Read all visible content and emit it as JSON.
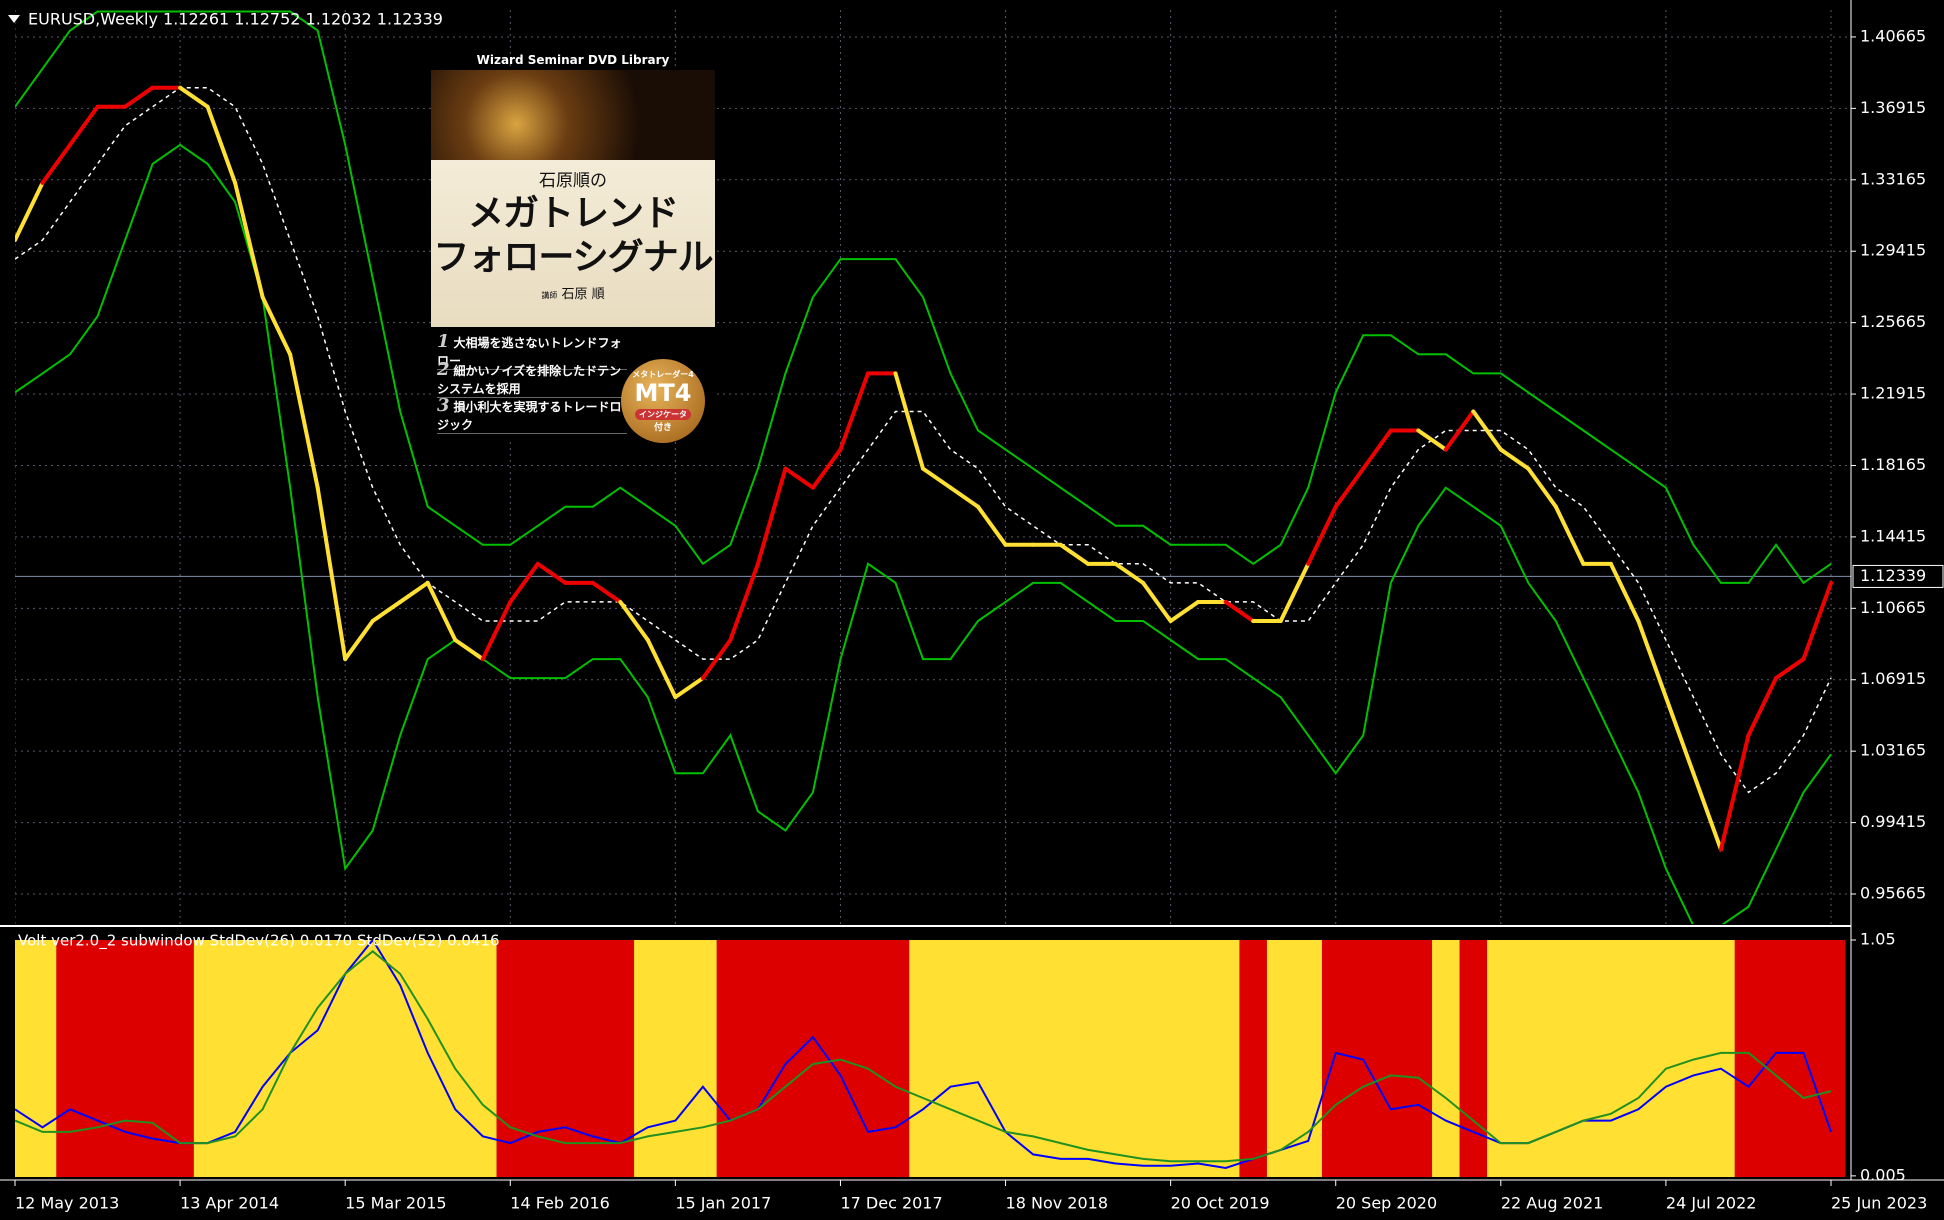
{
  "chart_data": [
    {
      "type": "line",
      "title": "EURUSD,Weekly  1.12261 1.12752 1.12032 1.12339",
      "ylim": [
        0.9409,
        1.4208
      ],
      "yticks": [
        1.40665,
        1.36915,
        1.33165,
        1.29415,
        1.25665,
        1.21915,
        1.18165,
        1.14415,
        1.10665,
        1.06915,
        1.03165,
        0.99415,
        0.95665
      ],
      "current_price": 1.12339,
      "grid": true,
      "series": [
        {
          "color": "#00c000",
          "values": [
            1.37,
            1.39,
            1.41,
            1.42,
            1.42,
            1.42,
            1.42,
            1.42,
            1.42,
            1.42,
            1.42,
            1.41,
            1.35,
            1.28,
            1.21,
            1.16,
            1.15,
            1.14,
            1.14,
            1.15,
            1.16,
            1.16,
            1.17,
            1.16,
            1.15,
            1.13,
            1.14,
            1.18,
            1.23,
            1.27,
            1.29,
            1.29,
            1.29,
            1.27,
            1.23,
            1.2,
            1.19,
            1.18,
            1.17,
            1.16,
            1.15,
            1.15,
            1.14,
            1.14,
            1.14,
            1.13,
            1.14,
            1.17,
            1.22,
            1.25,
            1.25,
            1.24,
            1.24,
            1.23,
            1.23,
            1.22,
            1.21,
            1.2,
            1.19,
            1.18,
            1.17,
            1.14,
            1.12,
            1.12,
            1.14,
            1.12,
            1.13
          ]
        },
        {
          "color": "#ffffff",
          "dashed": true,
          "values": [
            1.29,
            1.3,
            1.32,
            1.34,
            1.36,
            1.37,
            1.38,
            1.38,
            1.37,
            1.34,
            1.3,
            1.26,
            1.21,
            1.17,
            1.14,
            1.12,
            1.11,
            1.1,
            1.1,
            1.1,
            1.11,
            1.11,
            1.11,
            1.1,
            1.09,
            1.08,
            1.08,
            1.09,
            1.12,
            1.15,
            1.17,
            1.19,
            1.21,
            1.21,
            1.19,
            1.18,
            1.16,
            1.15,
            1.14,
            1.14,
            1.13,
            1.13,
            1.12,
            1.12,
            1.11,
            1.11,
            1.1,
            1.1,
            1.12,
            1.14,
            1.17,
            1.19,
            1.2,
            1.2,
            1.2,
            1.19,
            1.17,
            1.16,
            1.14,
            1.12,
            1.09,
            1.06,
            1.03,
            1.01,
            1.02,
            1.04,
            1.07
          ]
        },
        {
          "color": "#00c000",
          "values": [
            1.22,
            1.23,
            1.24,
            1.26,
            1.3,
            1.34,
            1.35,
            1.34,
            1.32,
            1.27,
            1.17,
            1.06,
            0.97,
            0.99,
            1.04,
            1.08,
            1.09,
            1.08,
            1.07,
            1.07,
            1.07,
            1.08,
            1.08,
            1.06,
            1.02,
            1.02,
            1.04,
            1.0,
            0.99,
            1.01,
            1.08,
            1.13,
            1.12,
            1.08,
            1.08,
            1.1,
            1.11,
            1.12,
            1.12,
            1.11,
            1.1,
            1.1,
            1.09,
            1.08,
            1.08,
            1.07,
            1.06,
            1.04,
            1.02,
            1.04,
            1.12,
            1.15,
            1.17,
            1.16,
            1.15,
            1.12,
            1.1,
            1.07,
            1.04,
            1.01,
            0.97,
            0.94,
            0.94,
            0.95,
            0.98,
            1.01,
            1.03
          ]
        },
        {
          "colors": [
            "#ffe033",
            "#ffe033",
            "#ee0000",
            "#ee0000",
            "#ee0000",
            "#ee0000",
            "#ee0000",
            "#ffe033",
            "#ffe033",
            "#ffe033",
            "#ffe033",
            "#ffe033",
            "#ffe033",
            "#ffe033",
            "#ffe033",
            "#ffe033",
            "#ffe033",
            "#ffe033",
            "#ee0000",
            "#ee0000",
            "#ee0000",
            "#ee0000",
            "#ee0000",
            "#ffe033",
            "#ffe033",
            "#ffe033",
            "#ee0000",
            "#ee0000",
            "#ee0000",
            "#ee0000",
            "#ee0000",
            "#ee0000",
            "#ee0000",
            "#ffe033",
            "#ffe033",
            "#ffe033",
            "#ffe033",
            "#ffe033",
            "#ffe033",
            "#ffe033",
            "#ffe033",
            "#ffe033",
            "#ffe033",
            "#ffe033",
            "#ffe033",
            "#ee0000",
            "#ffe033",
            "#ffe033",
            "#ee0000",
            "#ee0000",
            "#ee0000",
            "#ee0000",
            "#ffe033",
            "#ee0000",
            "#ffe033",
            "#ffe033",
            "#ffe033",
            "#ffe033",
            "#ffe033",
            "#ffe033",
            "#ffe033",
            "#ffe033",
            "#ffe033",
            "#ee0000",
            "#ee0000",
            "#ee0000",
            "#ee0000"
          ],
          "values": [
            1.3,
            1.33,
            1.35,
            1.37,
            1.37,
            1.38,
            1.38,
            1.37,
            1.33,
            1.27,
            1.24,
            1.17,
            1.08,
            1.1,
            1.11,
            1.12,
            1.09,
            1.08,
            1.11,
            1.13,
            1.12,
            1.12,
            1.11,
            1.09,
            1.06,
            1.07,
            1.09,
            1.13,
            1.18,
            1.17,
            1.19,
            1.23,
            1.23,
            1.18,
            1.17,
            1.16,
            1.14,
            1.14,
            1.14,
            1.13,
            1.13,
            1.12,
            1.1,
            1.11,
            1.11,
            1.1,
            1.1,
            1.13,
            1.16,
            1.18,
            1.2,
            1.2,
            1.19,
            1.21,
            1.19,
            1.18,
            1.16,
            1.13,
            1.13,
            1.1,
            1.06,
            1.02,
            0.98,
            1.04,
            1.07,
            1.08,
            1.12
          ]
        }
      ]
    },
    {
      "type": "line",
      "title": "Volt ver2.0_2 subwindow  StdDev(26) 0.0170  StdDev(52) 0.0416",
      "categories": [
        "12 May 2013",
        null,
        null,
        null,
        null,
        null,
        "13 Apr 2014",
        null,
        null,
        null,
        null,
        null,
        "15 Mar 2015",
        null,
        null,
        null,
        null,
        null,
        "14 Feb 2016",
        null,
        null,
        null,
        null,
        null,
        "15 Jan 2017",
        null,
        null,
        null,
        null,
        null,
        "17 Dec 2017",
        null,
        null,
        null,
        null,
        null,
        "18 Nov 2018",
        null,
        null,
        null,
        null,
        null,
        "20 Oct 2019",
        null,
        null,
        null,
        null,
        null,
        "20 Sep 2020",
        null,
        null,
        null,
        null,
        null,
        "22 Aug 2021",
        null,
        null,
        null,
        null,
        null,
        "24 Jul 2022",
        null,
        null,
        null,
        null,
        null,
        "25 Jun 2023"
      ],
      "ylim": [
        0,
        1.05
      ],
      "yticks": [
        1.05,
        0.005
      ],
      "band_colors": [
        "#ffe033",
        "#ffe033",
        "#dd0000",
        "#dd0000",
        "#dd0000",
        "#dd0000",
        "#dd0000",
        "#ffe033",
        "#ffe033",
        "#ffe033",
        "#ffe033",
        "#ffe033",
        "#ffe033",
        "#ffe033",
        "#ffe033",
        "#ffe033",
        "#ffe033",
        "#ffe033",
        "#dd0000",
        "#dd0000",
        "#dd0000",
        "#dd0000",
        "#dd0000",
        "#ffe033",
        "#ffe033",
        "#ffe033",
        "#dd0000",
        "#dd0000",
        "#dd0000",
        "#dd0000",
        "#dd0000",
        "#dd0000",
        "#dd0000",
        "#ffe033",
        "#ffe033",
        "#ffe033",
        "#ffe033",
        "#ffe033",
        "#ffe033",
        "#ffe033",
        "#ffe033",
        "#ffe033",
        "#ffe033",
        "#ffe033",
        "#ffe033",
        "#dd0000",
        "#ffe033",
        "#ffe033",
        "#dd0000",
        "#dd0000",
        "#dd0000",
        "#dd0000",
        "#ffe033",
        "#dd0000",
        "#ffe033",
        "#ffe033",
        "#ffe033",
        "#ffe033",
        "#ffe033",
        "#ffe033",
        "#ffe033",
        "#ffe033",
        "#ffe033",
        "#dd0000",
        "#dd0000",
        "#dd0000",
        "#dd0000"
      ],
      "series": [
        {
          "color": "#0000ff",
          "values": [
            0.3,
            0.22,
            0.3,
            0.25,
            0.2,
            0.17,
            0.15,
            0.15,
            0.2,
            0.4,
            0.55,
            0.65,
            0.9,
            1.05,
            0.85,
            0.55,
            0.3,
            0.18,
            0.15,
            0.2,
            0.22,
            0.18,
            0.15,
            0.22,
            0.25,
            0.4,
            0.25,
            0.3,
            0.5,
            0.62,
            0.45,
            0.2,
            0.22,
            0.3,
            0.4,
            0.42,
            0.2,
            0.1,
            0.08,
            0.08,
            0.06,
            0.05,
            0.05,
            0.06,
            0.04,
            0.08,
            0.12,
            0.16,
            0.55,
            0.52,
            0.3,
            0.32,
            0.25,
            0.2,
            0.15,
            0.15,
            0.2,
            0.25,
            0.25,
            0.3,
            0.4,
            0.45,
            0.48,
            0.4,
            0.55,
            0.55,
            0.2
          ]
        },
        {
          "color": "#209020",
          "values": [
            0.25,
            0.2,
            0.2,
            0.22,
            0.25,
            0.24,
            0.15,
            0.15,
            0.18,
            0.3,
            0.55,
            0.75,
            0.9,
            1.0,
            0.9,
            0.7,
            0.48,
            0.32,
            0.22,
            0.18,
            0.15,
            0.15,
            0.15,
            0.18,
            0.2,
            0.22,
            0.25,
            0.3,
            0.4,
            0.5,
            0.52,
            0.48,
            0.4,
            0.35,
            0.3,
            0.25,
            0.2,
            0.18,
            0.15,
            0.12,
            0.1,
            0.08,
            0.07,
            0.07,
            0.07,
            0.08,
            0.12,
            0.2,
            0.32,
            0.4,
            0.45,
            0.44,
            0.35,
            0.25,
            0.15,
            0.15,
            0.2,
            0.25,
            0.28,
            0.35,
            0.48,
            0.52,
            0.55,
            0.55,
            0.45,
            0.35,
            0.38
          ]
        }
      ]
    }
  ],
  "banner": {
    "header": "Wizard Seminar DVD Library",
    "author_line": "石原順の",
    "title_lines": [
      "メガトレンド",
      "フォローシグナル"
    ],
    "lecturer_label": "講師",
    "lecturer": "石原 順",
    "features": [
      {
        "num": "1",
        "text": "大相場を逃さないトレンドフォロー"
      },
      {
        "num": "2",
        "text": "細かいノイズを排除したドテンシステムを採用"
      },
      {
        "num": "3",
        "text": "損小利大を実現するトレードロジック"
      }
    ],
    "badge": {
      "top": "メタトレーダー4",
      "main": "MT4",
      "pill": "インジケータ",
      "bottom": "付き"
    }
  }
}
